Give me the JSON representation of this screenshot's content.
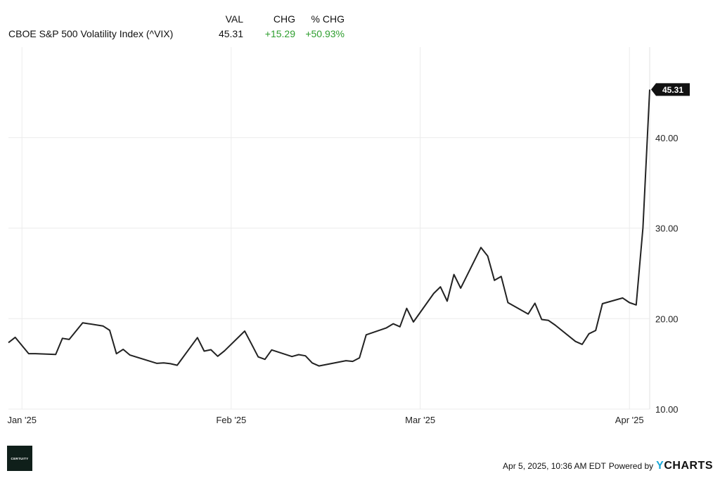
{
  "header": {
    "col_val": "VAL",
    "col_chg": "CHG",
    "col_pct": "% CHG",
    "series_name": "CBOE S&P 500 Volatility Index (^VIX)",
    "val": "45.31",
    "chg": "+15.29",
    "pct": "+50.93%"
  },
  "colors": {
    "line": "#222222",
    "positive": "#2f9e2f",
    "grid": "#e6e6e6",
    "ycharts_accent": "#1ba9d9"
  },
  "chart_data": {
    "type": "line",
    "title": "",
    "xlabel": "",
    "ylabel": "",
    "x_ticks": [
      {
        "date": "2025-01-01",
        "label": "Jan '25"
      },
      {
        "date": "2025-02-01",
        "label": "Feb '25"
      },
      {
        "date": "2025-03-01",
        "label": "Mar '25"
      },
      {
        "date": "2025-04-01",
        "label": "Apr '25"
      }
    ],
    "y_ticks": [
      "10.00",
      "20.00",
      "30.00",
      "40.00"
    ],
    "ylim": [
      10,
      50
    ],
    "xlim": [
      "2024-12-30",
      "2025-04-04"
    ],
    "grid": true,
    "last_value_label": "45.31",
    "series": [
      {
        "points": [
          [
            "2024-12-30",
            17.35
          ],
          [
            "2024-12-31",
            17.93
          ],
          [
            "2025-01-02",
            16.13
          ],
          [
            "2025-01-03",
            16.13
          ],
          [
            "2025-01-06",
            16.04
          ],
          [
            "2025-01-07",
            17.82
          ],
          [
            "2025-01-08",
            17.7
          ],
          [
            "2025-01-10",
            19.54
          ],
          [
            "2025-01-13",
            19.19
          ],
          [
            "2025-01-14",
            18.71
          ],
          [
            "2025-01-15",
            16.12
          ],
          [
            "2025-01-16",
            16.6
          ],
          [
            "2025-01-17",
            15.97
          ],
          [
            "2025-01-21",
            15.06
          ],
          [
            "2025-01-22",
            15.1
          ],
          [
            "2025-01-23",
            15.02
          ],
          [
            "2025-01-24",
            14.85
          ],
          [
            "2025-01-27",
            17.9
          ],
          [
            "2025-01-28",
            16.41
          ],
          [
            "2025-01-29",
            16.56
          ],
          [
            "2025-01-30",
            15.84
          ],
          [
            "2025-01-31",
            16.43
          ],
          [
            "2025-02-03",
            18.62
          ],
          [
            "2025-02-04",
            17.21
          ],
          [
            "2025-02-05",
            15.77
          ],
          [
            "2025-02-06",
            15.5
          ],
          [
            "2025-02-07",
            16.54
          ],
          [
            "2025-02-10",
            15.81
          ],
          [
            "2025-02-11",
            16.02
          ],
          [
            "2025-02-12",
            15.89
          ],
          [
            "2025-02-13",
            15.1
          ],
          [
            "2025-02-14",
            14.77
          ],
          [
            "2025-02-18",
            15.35
          ],
          [
            "2025-02-19",
            15.27
          ],
          [
            "2025-02-20",
            15.66
          ],
          [
            "2025-02-21",
            18.21
          ],
          [
            "2025-02-24",
            18.98
          ],
          [
            "2025-02-25",
            19.43
          ],
          [
            "2025-02-26",
            19.1
          ],
          [
            "2025-02-27",
            21.13
          ],
          [
            "2025-02-28",
            19.63
          ],
          [
            "2025-03-03",
            22.78
          ],
          [
            "2025-03-04",
            23.51
          ],
          [
            "2025-03-05",
            21.93
          ],
          [
            "2025-03-06",
            24.87
          ],
          [
            "2025-03-07",
            23.37
          ],
          [
            "2025-03-10",
            27.86
          ],
          [
            "2025-03-11",
            26.92
          ],
          [
            "2025-03-12",
            24.23
          ],
          [
            "2025-03-13",
            24.66
          ],
          [
            "2025-03-14",
            21.77
          ],
          [
            "2025-03-17",
            20.51
          ],
          [
            "2025-03-18",
            21.7
          ],
          [
            "2025-03-19",
            19.9
          ],
          [
            "2025-03-20",
            19.8
          ],
          [
            "2025-03-21",
            19.28
          ],
          [
            "2025-03-24",
            17.48
          ],
          [
            "2025-03-25",
            17.15
          ],
          [
            "2025-03-26",
            18.33
          ],
          [
            "2025-03-27",
            18.69
          ],
          [
            "2025-03-28",
            21.65
          ],
          [
            "2025-03-31",
            22.28
          ],
          [
            "2025-04-01",
            21.77
          ],
          [
            "2025-04-02",
            21.51
          ],
          [
            "2025-04-03",
            30.02
          ],
          [
            "2025-04-04",
            45.31
          ]
        ]
      }
    ]
  },
  "footer": {
    "logo_text": "CERTUITY",
    "timestamp": "Apr 5, 2025, 10:36 AM EDT",
    "powered_by": "Powered by",
    "brand_y": "Y",
    "brand_rest": "CHARTS"
  }
}
